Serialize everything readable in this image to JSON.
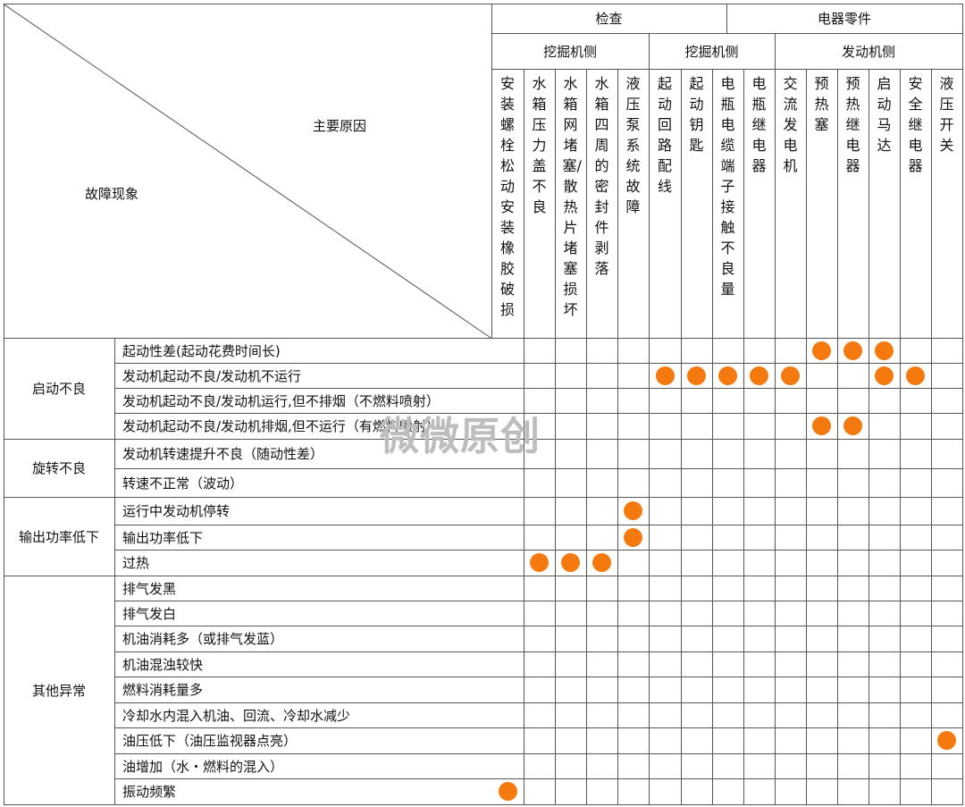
{
  "header": {
    "row_axis_label": "故障现象",
    "col_axis_label": "主要原因",
    "groups_top": [
      {
        "label": "检查"
      },
      {
        "label": "电器零件"
      }
    ],
    "groups_mid": [
      {
        "label": "挖掘机侧"
      },
      {
        "label": "挖掘机侧"
      },
      {
        "label": "发动机侧"
      }
    ],
    "columns": [
      "安装螺栓松动 安装橡胶破损",
      "水箱压力盖不良",
      "水箱网堵塞/散热片堵塞 损坏",
      "水箱四周的密封件剥落",
      "液压泵系统故障",
      "起动回路配线",
      "起动钥匙",
      "电瓶电缆端子接触不良量",
      "电瓶继电器",
      "交流发电机",
      "预热塞",
      "预热继电器",
      "启动马达",
      "安全继电器",
      "液压开关"
    ]
  },
  "categories": [
    {
      "label": "启动不良"
    },
    {
      "label": "旋转不良"
    },
    {
      "label": "输出功率低下"
    },
    {
      "label": "其他异常"
    }
  ],
  "rows": [
    {
      "symptom": "起动性差(起动花费时间长)",
      "marks": [
        10,
        11,
        12
      ]
    },
    {
      "symptom": "发动机起动不良/发动机不运行",
      "marks": [
        5,
        6,
        7,
        8,
        9,
        12,
        13
      ]
    },
    {
      "symptom": "发动机起动不良/发动机运行,但不排烟（不燃料喷射）",
      "marks": []
    },
    {
      "symptom": "发动机起动不良/发动机排烟,但不运行（有燃料喷射）",
      "marks": [
        10,
        11
      ]
    },
    {
      "symptom": "发动机转速提升不良（随动性差）",
      "marks": []
    },
    {
      "symptom": "转速不正常（波动）",
      "marks": []
    },
    {
      "symptom": "运行中发动机停转",
      "marks": [
        4
      ]
    },
    {
      "symptom": "输出功率低下",
      "marks": [
        4
      ]
    },
    {
      "symptom": "过热",
      "marks": [
        1,
        2,
        3
      ]
    },
    {
      "symptom": "排气发黑",
      "marks": []
    },
    {
      "symptom": "排气发白",
      "marks": []
    },
    {
      "symptom": "机油消耗多（或排气发蓝）",
      "marks": []
    },
    {
      "symptom": "机油混浊较快",
      "marks": []
    },
    {
      "symptom": "燃料消耗量多",
      "marks": []
    },
    {
      "symptom": "冷却水内混入机油、回流、冷却水减少",
      "marks": []
    },
    {
      "symptom": "油压低下（油压监视器点亮）",
      "marks": [
        14
      ]
    },
    {
      "symptom": "油增加（水・燃料的混入）",
      "marks": []
    },
    {
      "symptom": "振动频繁",
      "marks": [
        0
      ]
    }
  ],
  "watermark": "微微原创",
  "colors": {
    "mark": "#f47a10",
    "grid": "#555555"
  }
}
